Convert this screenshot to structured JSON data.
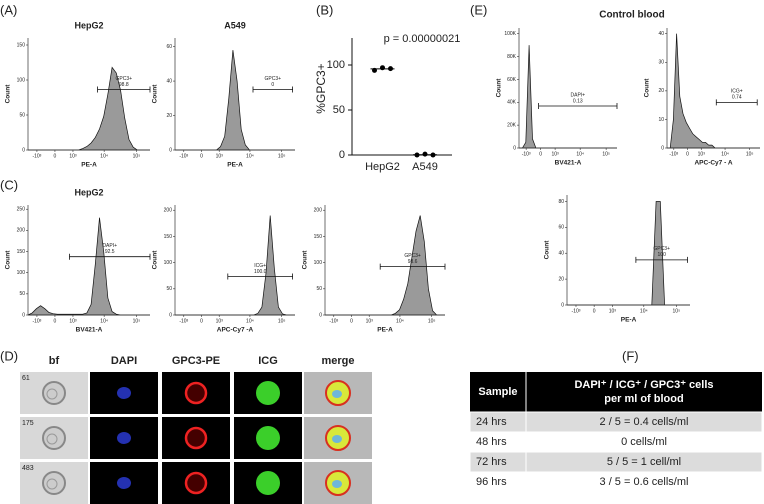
{
  "panel_labels": [
    "(A)",
    "(B)",
    "(C)",
    "(D)",
    "(E)",
    "(F)"
  ],
  "figure_title_e": "Control blood",
  "chart_data": [
    {
      "type": "density",
      "title": "HepG2",
      "xlabel": "PE-A",
      "ylabel": "Count",
      "ylim": [
        0,
        160
      ],
      "yticks": [
        0,
        50,
        100,
        150
      ],
      "xlim": [
        -2000,
        262144
      ],
      "xticks": [
        {
          "value": -1000,
          "label": "-10³"
        },
        0,
        {
          "value": 1000,
          "label": "10³"
        },
        {
          "value": 10000,
          "label": "10⁴"
        },
        {
          "value": 100000,
          "label": "10⁵"
        }
      ],
      "values": [
        0,
        0,
        0,
        0,
        0,
        0,
        0,
        0,
        0,
        0,
        0,
        0,
        0,
        2,
        5,
        10,
        18,
        30,
        48,
        80,
        118,
        110,
        85,
        45,
        15,
        4,
        0,
        0,
        0,
        0
      ],
      "gate": {
        "name": "GPC3+",
        "value": "98.8"
      }
    },
    {
      "type": "density",
      "title": "A549",
      "xlabel": "PE-A",
      "ylabel": "Count",
      "ylim": [
        0,
        65
      ],
      "yticks": [
        0,
        20,
        40,
        60
      ],
      "xlim": [
        -2000,
        262144
      ],
      "xticks": [
        {
          "value": -1000,
          "label": "-10³"
        },
        0,
        {
          "value": 1000,
          "label": "10³"
        },
        {
          "value": 10000,
          "label": "10⁴"
        },
        {
          "value": 100000,
          "label": "10⁵"
        }
      ],
      "values": [
        0,
        0,
        0,
        0,
        0,
        0,
        0,
        0,
        0,
        0,
        0,
        2,
        8,
        30,
        58,
        40,
        12,
        3,
        0,
        0,
        0,
        0,
        0,
        0,
        0,
        0,
        0,
        0,
        0,
        0
      ],
      "gate": {
        "name": "GPC3+",
        "value": "0"
      }
    },
    {
      "type": "density",
      "title": "HepG2",
      "xlabel": "BV421-A",
      "ylabel": "Count",
      "ylim": [
        0,
        260
      ],
      "yticks": [
        0,
        50,
        100,
        150,
        200,
        250
      ],
      "xlim": [
        -2000,
        262144
      ],
      "xticks": [
        {
          "value": -1000,
          "label": "-10³"
        },
        0,
        {
          "value": 1000,
          "label": "10³"
        },
        {
          "value": 10000,
          "label": "10⁴"
        },
        {
          "value": 100000,
          "label": "10⁵"
        }
      ],
      "values": [
        0,
        5,
        15,
        22,
        15,
        6,
        3,
        2,
        2,
        2,
        2,
        2,
        2,
        2,
        5,
        25,
        120,
        230,
        150,
        40,
        8,
        2,
        0,
        0,
        0,
        0,
        0,
        0,
        0,
        0
      ],
      "gate": {
        "name": "DAPI+",
        "value": "92.5"
      }
    },
    {
      "type": "density",
      "xlabel": "APC-Cy7 -A",
      "ylabel": "Count",
      "ylim": [
        0,
        210
      ],
      "yticks": [
        0,
        50,
        100,
        150,
        200
      ],
      "xlim": [
        -2000,
        262144
      ],
      "xticks": [
        {
          "value": -1000,
          "label": "-10³"
        },
        0,
        {
          "value": 1000,
          "label": "10³"
        },
        {
          "value": 10000,
          "label": "10⁴"
        },
        {
          "value": 100000,
          "label": "10⁵"
        }
      ],
      "values": [
        0,
        0,
        0,
        0,
        0,
        0,
        0,
        0,
        0,
        0,
        0,
        0,
        0,
        0,
        0,
        0,
        0,
        0,
        0,
        0,
        3,
        15,
        80,
        190,
        90,
        15,
        2,
        0,
        0,
        0
      ],
      "gate": {
        "name": "ICG+",
        "value": "100.0"
      }
    },
    {
      "type": "density",
      "xlabel": "PE-A",
      "ylabel": "Count",
      "ylim": [
        0,
        210
      ],
      "yticks": [
        0,
        50,
        100,
        150,
        200
      ],
      "xlim": [
        -2000,
        262144
      ],
      "xticks": [
        {
          "value": -1000,
          "label": "-10³"
        },
        0,
        {
          "value": 1000,
          "label": "10³"
        },
        {
          "value": 10000,
          "label": "10⁴"
        },
        {
          "value": 100000,
          "label": "10⁵"
        }
      ],
      "values": [
        0,
        0,
        0,
        0,
        0,
        0,
        0,
        0,
        0,
        0,
        0,
        0,
        0,
        0,
        0,
        0,
        0,
        3,
        10,
        30,
        60,
        110,
        160,
        190,
        140,
        50,
        8,
        0,
        0,
        0
      ],
      "gate": {
        "name": "GPC3+",
        "value": "98.6"
      }
    },
    {
      "type": "density",
      "xlabel": "BV421-A",
      "ylabel": "Count",
      "ylim": [
        0,
        105000
      ],
      "yticks": [
        0,
        {
          "value": 20000,
          "label": "20K"
        },
        {
          "value": 40000,
          "label": "40K"
        },
        {
          "value": 60000,
          "label": "60K"
        },
        {
          "value": 80000,
          "label": "80K"
        },
        {
          "value": 100000,
          "label": "100K"
        }
      ],
      "xlim": [
        -2000,
        262144
      ],
      "xticks": [
        {
          "value": -1000,
          "label": "-10³"
        },
        0,
        {
          "value": 1000,
          "label": "10³"
        },
        {
          "value": 10000,
          "label": "10⁴"
        },
        {
          "value": 100000,
          "label": "10⁵"
        }
      ],
      "values": [
        0,
        0,
        5000,
        90000,
        8000,
        0,
        0,
        0,
        0,
        0,
        0,
        0,
        0,
        0,
        0,
        0,
        0,
        0,
        0,
        0,
        0,
        0,
        0,
        0,
        0,
        0,
        0,
        0,
        0,
        0
      ],
      "gate": {
        "name": "DAPI+",
        "value": "0.13"
      }
    },
    {
      "type": "density",
      "xlabel": "APC-Cy7 - A",
      "ylabel": "Count",
      "ylim": [
        0,
        42
      ],
      "yticks": [
        0,
        10,
        20,
        30,
        40
      ],
      "xlim": [
        -2000,
        262144
      ],
      "xticks": [
        {
          "value": -1000,
          "label": "-10³"
        },
        0,
        {
          "value": 1000,
          "label": "10³"
        },
        {
          "value": 10000,
          "label": "10⁴"
        },
        {
          "value": 100000,
          "label": "10⁵"
        }
      ],
      "values": [
        0,
        0,
        10,
        40,
        18,
        12,
        9,
        7,
        5,
        4,
        3,
        2,
        2,
        1,
        1,
        0,
        0,
        0,
        0,
        0,
        0,
        0,
        0,
        0,
        0,
        0,
        0,
        0,
        0,
        0
      ],
      "gate": {
        "name": "ICG+",
        "value": "0.74"
      }
    },
    {
      "type": "density",
      "xlabel": "PE-A",
      "ylabel": "Count",
      "ylim": [
        0,
        85
      ],
      "yticks": [
        0,
        20,
        40,
        60,
        80
      ],
      "xlim": [
        -2000,
        262144
      ],
      "xticks": [
        {
          "value": -1000,
          "label": "-10³"
        },
        0,
        {
          "value": 1000,
          "label": "10³"
        },
        {
          "value": 10000,
          "label": "10⁴"
        },
        {
          "value": 100000,
          "label": "10⁵"
        }
      ],
      "values": [
        0,
        0,
        0,
        0,
        0,
        0,
        0,
        0,
        0,
        0,
        0,
        0,
        0,
        0,
        0,
        0,
        0,
        0,
        0,
        0,
        0,
        80,
        80,
        0,
        0,
        0,
        0,
        0,
        0,
        0
      ],
      "gate": {
        "name": "GPC3+",
        "value": "100"
      }
    },
    {
      "type": "scatter",
      "ylabel": "%GPC3+",
      "annotation": "p = 0.00000021",
      "categories": [
        "HepG2",
        "A549"
      ],
      "values": [
        [
          94,
          97,
          96
        ],
        [
          0,
          1,
          0
        ]
      ],
      "ylim": [
        0,
        130
      ],
      "yticks": [
        0,
        50,
        100
      ],
      "color": "#000000"
    }
  ],
  "image_grid": {
    "columns": [
      "bf",
      "DAPI",
      "GPC3-PE",
      "ICG",
      "merge"
    ],
    "rows": [
      "61",
      "175",
      "483"
    ]
  },
  "table": {
    "header": [
      "Sample",
      [
        "DAPI⁺ / ICG⁺ / GPC3⁺ cells",
        "per ml of blood"
      ]
    ],
    "rows": [
      [
        "24 hrs",
        "2 / 5 = 0.4 cells/ml"
      ],
      [
        "48 hrs",
        "0 cells/ml"
      ],
      [
        "72 hrs",
        "5 / 5 = 1 cell/ml"
      ],
      [
        "96 hrs",
        "3 / 5 = 0.6 cells/ml"
      ]
    ]
  }
}
